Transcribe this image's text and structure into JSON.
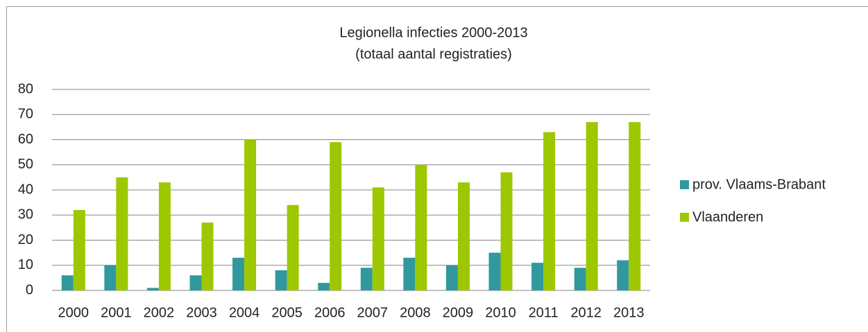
{
  "chart_data": {
    "type": "bar",
    "title": "Legionella infecties  2000-2013",
    "subtitle": "(totaal aantal registraties)",
    "categories": [
      "2000",
      "2001",
      "2002",
      "2003",
      "2004",
      "2005",
      "2006",
      "2007",
      "2008",
      "2009",
      "2010",
      "2011",
      "2012",
      "2013"
    ],
    "series": [
      {
        "name": "prov. Vlaams-Brabant",
        "color": "#31999e",
        "values": [
          6,
          10,
          1,
          6,
          13,
          8,
          3,
          9,
          13,
          10,
          15,
          11,
          9,
          12
        ]
      },
      {
        "name": "Vlaanderen",
        "color": "#9dc800",
        "values": [
          32,
          45,
          43,
          27,
          60,
          34,
          59,
          41,
          50,
          43,
          47,
          63,
          67,
          67
        ]
      }
    ],
    "ylim": [
      0,
      80
    ],
    "yticks": [
      0,
      10,
      20,
      30,
      40,
      50,
      60,
      70,
      80
    ],
    "grid": true,
    "legend": "right"
  }
}
